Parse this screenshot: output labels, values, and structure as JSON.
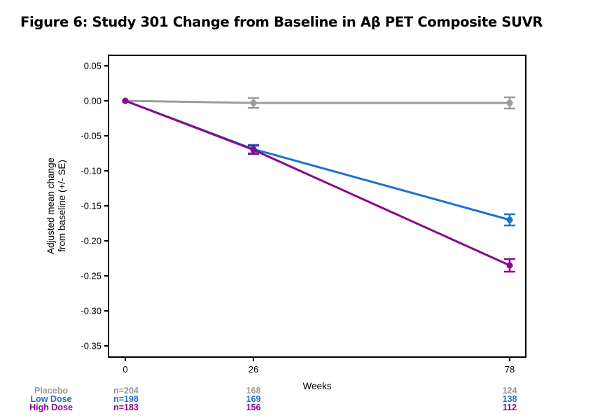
{
  "figure_title": "Figure 6: Study 301 Change from Baseline in Aβ PET Composite SUVR",
  "chart_data": {
    "type": "line",
    "title": "Figure 6: Study 301 Change from Baseline in Aβ PET Composite SUVR",
    "xlabel": "Weeks",
    "ylabel": [
      "Adjusted mean change",
      "from baseline (+/- SE)"
    ],
    "x": [
      0,
      26,
      78
    ],
    "x_ticks": [
      "0",
      "26",
      "78"
    ],
    "ylim": [
      -0.365,
      0.065
    ],
    "y_ticks": [
      0.05,
      0.0,
      -0.05,
      -0.1,
      -0.15,
      -0.2,
      -0.25,
      -0.3,
      -0.35
    ],
    "y_tick_labels": [
      "0.05",
      "0.00",
      "-0.05",
      "-0.10",
      "-0.15",
      "-0.20",
      "-0.25",
      "-0.30",
      "-0.35"
    ],
    "grid": false,
    "series": [
      {
        "name": "Placebo",
        "color": "#9b9b9b",
        "values": [
          0.0,
          -0.003,
          -0.003
        ],
        "se": [
          0.0,
          0.007,
          0.008
        ],
        "n": [
          "n=204",
          "168",
          "124"
        ]
      },
      {
        "name": "Low Dose",
        "color": "#1e73c8",
        "values": [
          0.0,
          -0.069,
          -0.17
        ],
        "se": [
          0.0,
          0.006,
          0.008
        ],
        "n": [
          "n=198",
          "169",
          "138"
        ]
      },
      {
        "name": "High Dose",
        "color": "#880a8c",
        "values": [
          0.0,
          -0.07,
          -0.235
        ],
        "se": [
          0.0,
          0.006,
          0.009
        ],
        "n": [
          "n=183",
          "156",
          "112"
        ]
      }
    ]
  }
}
